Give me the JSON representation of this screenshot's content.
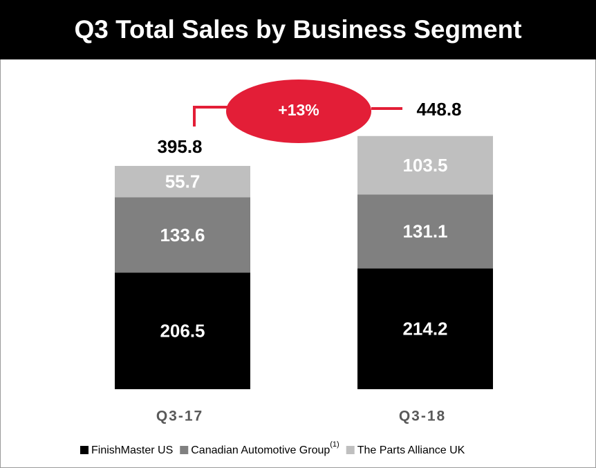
{
  "chart_data": {
    "type": "stacked_bar",
    "title": "Q3 Total Sales by Business Segment",
    "categories": [
      "Q3-17",
      "Q3-18"
    ],
    "series": [
      {
        "name": "FinishMaster US",
        "color": "#000000",
        "values": [
          206.5,
          214.2
        ]
      },
      {
        "name": "Canadian Automotive Group",
        "note": "(1)",
        "color": "#808080",
        "values": [
          133.6,
          131.1
        ]
      },
      {
        "name": "The Parts Alliance UK",
        "color": "#bfbfbf",
        "values": [
          55.7,
          103.5
        ]
      }
    ],
    "totals": [
      395.8,
      448.8
    ],
    "annotation": "+13%",
    "annotation_color": "#e31e37",
    "legend": "bottom"
  }
}
